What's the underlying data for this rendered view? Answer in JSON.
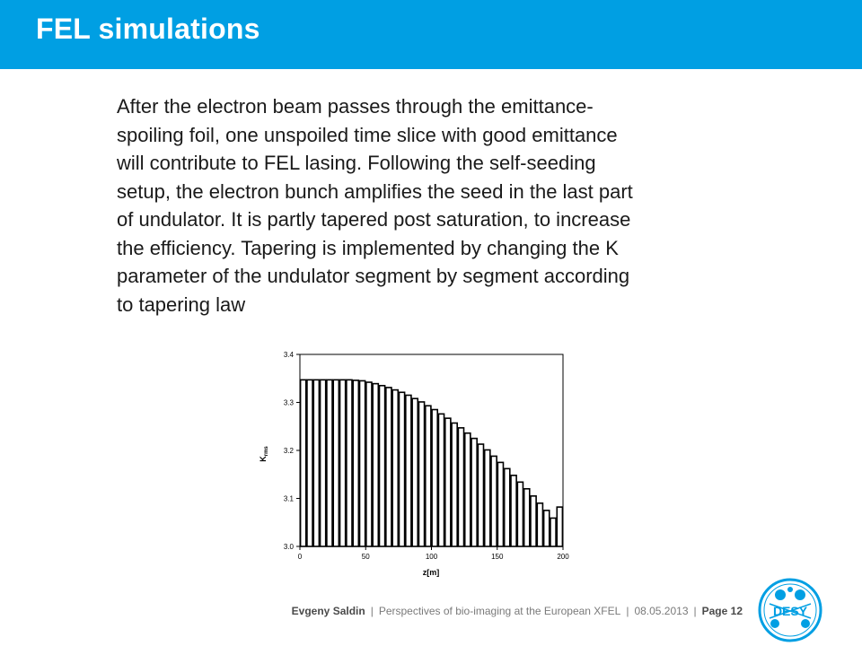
{
  "slide": {
    "title": "FEL simulations",
    "body_lines": [
      "After the electron beam passes through the emittance-",
      "spoiling foil, one unspoiled time slice with good emittance",
      "will contribute to FEL lasing. Following the self-seeding",
      "setup, the electron bunch amplifies the seed in the last part",
      "of undulator. It is partly tapered post saturation, to increase",
      "the efficiency. Tapering is implemented by changing the K",
      "parameter of the undulator  segment by segment according",
      "to tapering law"
    ]
  },
  "footer": {
    "author": "Evgeny Saldin",
    "talk": "Perspectives of bio-imaging at the European XFEL",
    "date": "08.05.2013",
    "page": "Page 12"
  },
  "logo": {
    "text": "DESY",
    "color": "#009fe3"
  },
  "colors": {
    "header": "#009fe3",
    "bars": "#000000"
  },
  "chart_data": {
    "type": "bar",
    "xlabel": "z[m]",
    "ylabel": "K",
    "ylabel_subscript": "rms",
    "xlim": [
      0,
      200
    ],
    "ylim": [
      3.0,
      3.4
    ],
    "xticks": [
      "0",
      "50",
      "100",
      "150",
      "200"
    ],
    "yticks": [
      "3.0",
      "3.1",
      "3.2",
      "3.3",
      "3.4"
    ],
    "segment_width": 5,
    "x": [
      2.5,
      7.5,
      12.5,
      17.5,
      22.5,
      27.5,
      32.5,
      37.5,
      42.5,
      47.5,
      52.5,
      57.5,
      62.5,
      67.5,
      72.5,
      77.5,
      82.5,
      87.5,
      92.5,
      97.5,
      102.5,
      107.5,
      112.5,
      117.5,
      122.5,
      127.5,
      132.5,
      137.5,
      142.5,
      147.5,
      152.5,
      157.5,
      162.5,
      167.5,
      172.5,
      177.5,
      182.5,
      187.5,
      192.5,
      197.5
    ],
    "values": [
      3.347,
      3.347,
      3.347,
      3.347,
      3.347,
      3.347,
      3.347,
      3.347,
      3.346,
      3.345,
      3.342,
      3.339,
      3.335,
      3.331,
      3.326,
      3.321,
      3.315,
      3.308,
      3.301,
      3.293,
      3.285,
      3.276,
      3.267,
      3.257,
      3.247,
      3.236,
      3.225,
      3.213,
      3.201,
      3.188,
      3.175,
      3.162,
      3.148,
      3.134,
      3.12,
      3.105,
      3.09,
      3.075,
      3.059,
      3.082
    ]
  }
}
